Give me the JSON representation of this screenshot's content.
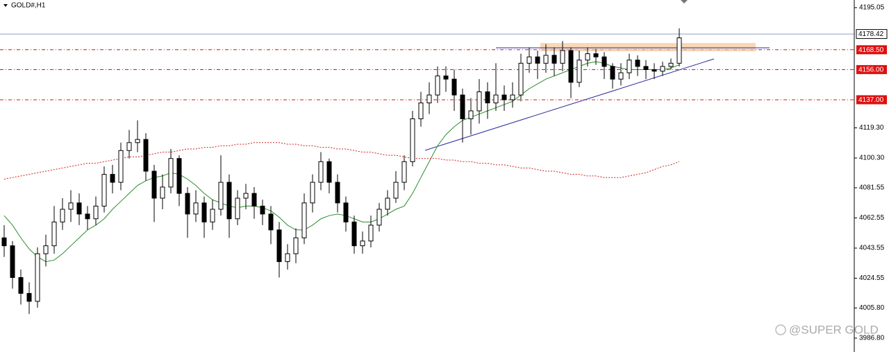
{
  "chart_data": {
    "type": "candlestick",
    "title": "GOLD#,H1",
    "watermark": "@SUPER GOLD",
    "ylim": [
      3978.07,
      4199.85
    ],
    "yticks": [
      4195.05,
      {
        "value": 4119.3,
        "label": "4119.30"
      },
      {
        "value": 4100.3,
        "label": "4100.30"
      },
      4081.55,
      4062.55,
      4043.55,
      4024.55,
      {
        "value": 4005.8,
        "label": "4005.80"
      },
      {
        "value": 3986.8,
        "label": "3986.80"
      }
    ],
    "current_price": {
      "value": 4178.42,
      "label": "4178.42",
      "color": "#8aa0c8"
    },
    "levels": [
      {
        "value": 4168.5,
        "label": "4168.50",
        "color": "#e01010"
      },
      {
        "value": 4156,
        "label": "4156.00",
        "color": "#e01010"
      },
      {
        "value": 4137,
        "label": "4137.00",
        "color": "#e01010"
      }
    ],
    "open": [
      4050,
      4045,
      4025,
      4015,
      4010,
      4040,
      4045,
      4060,
      4068,
      4072,
      4065,
      4062,
      4070,
      4090,
      4085,
      4105,
      4110,
      4112,
      4092,
      4075,
      4082,
      4100,
      4078,
      4065,
      4072,
      4060,
      4068,
      4085,
      4062,
      4075,
      4078,
      4070,
      4065,
      4055,
      4035,
      4040,
      4050,
      4072,
      4085,
      4098,
      4085,
      4072,
      4060,
      4045,
      4048,
      4058,
      4068,
      4075,
      4085,
      4098,
      4125,
      4135,
      4140,
      4152,
      4150,
      4140,
      4125,
      4130,
      4142,
      4135,
      4140,
      4137,
      4140,
      4160,
      4164,
      4160,
      4165,
      4160,
      4168,
      4148,
      4162,
      4166,
      4164,
      4158,
      4150,
      4154,
      4162,
      4158,
      4156,
      4155,
      4158,
      4160
    ],
    "high": [
      4058,
      4048,
      4030,
      4022,
      4044,
      4052,
      4070,
      4075,
      4080,
      4078,
      4070,
      4076,
      4095,
      4096,
      4110,
      4118,
      4124,
      4116,
      4096,
      4090,
      4106,
      4102,
      4082,
      4080,
      4076,
      4074,
      4102,
      4090,
      4080,
      4084,
      4082,
      4074,
      4070,
      4060,
      4046,
      4056,
      4078,
      4090,
      4104,
      4100,
      4090,
      4076,
      4064,
      4054,
      4064,
      4072,
      4080,
      4092,
      4102,
      4130,
      4142,
      4148,
      4158,
      4158,
      4156,
      4144,
      4138,
      4150,
      4148,
      4160,
      4146,
      4148,
      4166,
      4170,
      4168,
      4172,
      4170,
      4174,
      4170,
      4168,
      4170,
      4169,
      4167,
      4160,
      4160,
      4166,
      4165,
      4162,
      4160,
      4161,
      4163,
      4182
    ],
    "low": [
      4038,
      4018,
      4008,
      4002,
      4006,
      4032,
      4040,
      4055,
      4060,
      4058,
      4055,
      4058,
      4066,
      4078,
      4080,
      4100,
      4104,
      4086,
      4060,
      4068,
      4078,
      4070,
      4050,
      4060,
      4050,
      4055,
      4064,
      4050,
      4058,
      4068,
      4062,
      4058,
      4046,
      4025,
      4030,
      4034,
      4046,
      4066,
      4080,
      4078,
      4066,
      4054,
      4040,
      4040,
      4044,
      4054,
      4064,
      4072,
      4080,
      4095,
      4120,
      4128,
      4135,
      4142,
      4130,
      4110,
      4115,
      4122,
      4125,
      4130,
      4130,
      4132,
      4136,
      4154,
      4150,
      4154,
      4152,
      4155,
      4138,
      4145,
      4158,
      4159,
      4150,
      4144,
      4146,
      4150,
      4152,
      4150,
      4150,
      4152,
      4156,
      4158
    ],
    "close": [
      4045,
      4025,
      4015,
      4010,
      4040,
      4045,
      4060,
      4068,
      4072,
      4065,
      4062,
      4070,
      4090,
      4085,
      4105,
      4110,
      4112,
      4092,
      4075,
      4082,
      4100,
      4078,
      4065,
      4072,
      4060,
      4068,
      4085,
      4062,
      4075,
      4078,
      4070,
      4065,
      4055,
      4035,
      4040,
      4050,
      4072,
      4085,
      4098,
      4085,
      4072,
      4060,
      4045,
      4048,
      4058,
      4068,
      4075,
      4085,
      4098,
      4125,
      4135,
      4140,
      4152,
      4150,
      4140,
      4125,
      4130,
      4142,
      4135,
      4140,
      4137,
      4140,
      4160,
      4164,
      4160,
      4165,
      4160,
      4168,
      4148,
      4162,
      4166,
      4164,
      4158,
      4150,
      4154,
      4162,
      4158,
      4156,
      4155,
      4158,
      4160,
      4176
    ],
    "indicators": [
      {
        "color": "#2e8b2e",
        "style": "solid",
        "values": [
          4064,
          4058,
          4050,
          4043,
          4038,
          4035,
          4036,
          4040,
          4045,
          4050,
          4055,
          4058,
          4062,
          4068,
          4073,
          4078,
          4083,
          4086,
          4088,
          4089,
          4091,
          4090,
          4087,
          4083,
          4078,
          4074,
          4072,
          4070,
          4069,
          4070,
          4070,
          4069,
          4067,
          4063,
          4058,
          4055,
          4055,
          4058,
          4062,
          4064,
          4065,
          4064,
          4062,
          4060,
          4060,
          4062,
          4065,
          4068,
          4070,
          4078,
          4088,
          4098,
          4108,
          4115,
          4120,
          4124,
          4126,
          4128,
          4130,
          4132,
          4134,
          4136,
          4140,
          4144,
          4147,
          4150,
          4152,
          4154,
          4156,
          4158,
          4160,
          4161,
          4160,
          4158,
          4157,
          4156,
          4156,
          4156,
          4156,
          4156,
          4157,
          4159
        ]
      },
      {
        "color": "#d02020",
        "style": "dotted",
        "values": [
          4087,
          4088,
          4089,
          4090,
          4091,
          4092,
          4093,
          4094,
          4095,
          4096,
          4097,
          4097,
          4098,
          4099,
          4100,
          4101,
          4101,
          4102,
          4103,
          4104,
          4104,
          4105,
          4106,
          4106,
          4107,
          4107,
          4108,
          4108,
          4109,
          4109,
          4110,
          4110,
          4110,
          4110,
          4109,
          4109,
          4108,
          4108,
          4107,
          4107,
          4106,
          4106,
          4105,
          4104,
          4104,
          4103,
          4102,
          4102,
          4101,
          4100,
          4100,
          4100,
          4100,
          4099,
          4099,
          4098,
          4098,
          4097,
          4097,
          4096,
          4096,
          4095,
          4094,
          4094,
          4093,
          4092,
          4092,
          4091,
          4090,
          4090,
          4089,
          4089,
          4088,
          4088,
          4088,
          4089,
          4090,
          4091,
          4093,
          4095,
          4096,
          4098
        ]
      }
    ]
  }
}
